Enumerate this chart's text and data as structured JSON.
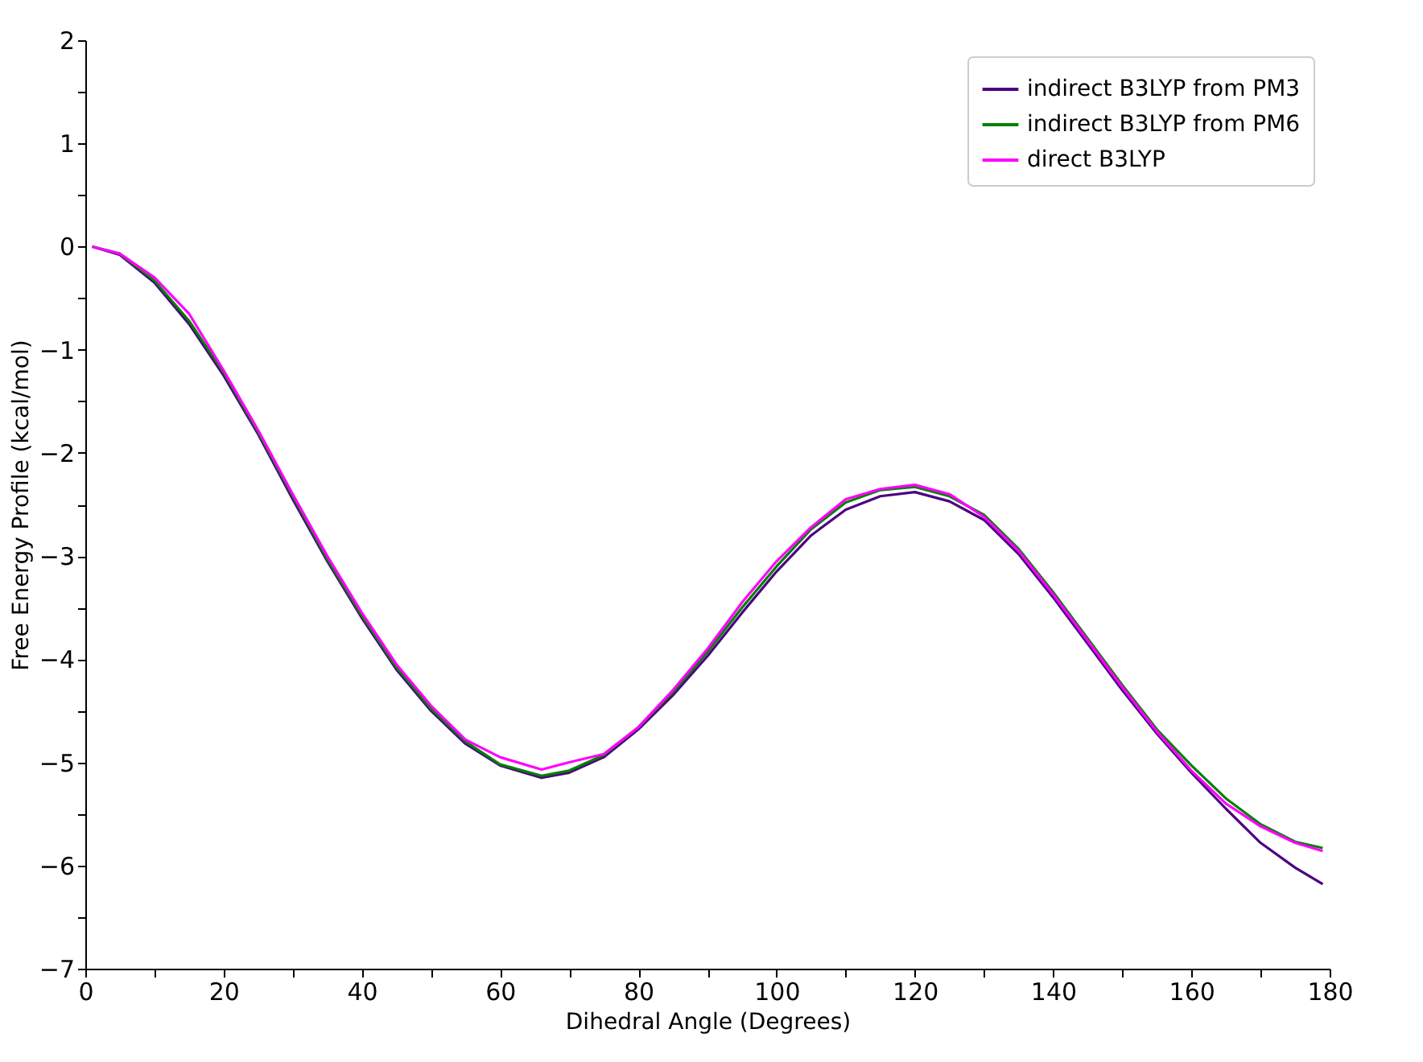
{
  "chart_data": {
    "type": "line",
    "xlabel": "Dihedral Angle (Degrees)",
    "ylabel": "Free Energy Profile (kcal/mol)",
    "xlim": [
      0,
      180
    ],
    "ylim": [
      -7,
      2
    ],
    "xticks": [
      0,
      {
        "value": 10,
        "label": null
      },
      20,
      {
        "value": 30,
        "label": null
      },
      40,
      {
        "value": 50,
        "label": null
      },
      60,
      {
        "value": 70,
        "label": null
      },
      80,
      {
        "value": 90,
        "label": null
      },
      100,
      {
        "value": 110,
        "label": null
      },
      120,
      {
        "value": 130,
        "label": null
      },
      140,
      {
        "value": 150,
        "label": null
      },
      160,
      {
        "value": 170,
        "label": null
      },
      180
    ],
    "yticks": [
      -7,
      {
        "value": -6.5,
        "label": null
      },
      -6,
      {
        "value": -5.5,
        "label": null
      },
      -5,
      {
        "value": -4.5,
        "label": null
      },
      -4,
      {
        "value": -3.5,
        "label": null
      },
      -3,
      {
        "value": -2.5,
        "label": null
      },
      -2,
      {
        "value": -1.5,
        "label": null
      },
      -1,
      {
        "value": -0.5,
        "label": null
      },
      0,
      {
        "value": 0.5,
        "label": null
      },
      1,
      {
        "value": 1.5,
        "label": null
      },
      2
    ],
    "x": [
      1,
      5,
      10,
      15,
      20,
      25,
      30,
      35,
      40,
      45,
      50,
      55,
      60,
      66,
      70,
      75,
      80,
      85,
      90,
      95,
      100,
      105,
      110,
      115,
      120,
      125,
      130,
      135,
      140,
      145,
      150,
      155,
      160,
      165,
      170,
      175,
      179
    ],
    "legend": "top right",
    "grid": false,
    "line_style": "solid",
    "marker": "none",
    "series": [
      {
        "name": "indirect B3LYP from PM3",
        "color": "#4b0082",
        "values": [
          0,
          -0.08,
          -0.35,
          -0.75,
          -1.25,
          -1.82,
          -2.45,
          -3.05,
          -3.6,
          -4.1,
          -4.5,
          -4.82,
          -5.03,
          -5.15,
          -5.1,
          -4.95,
          -4.68,
          -4.35,
          -3.97,
          -3.55,
          -3.15,
          -2.8,
          -2.55,
          -2.42,
          -2.38,
          -2.47,
          -2.65,
          -2.98,
          -3.4,
          -3.85,
          -4.3,
          -4.72,
          -5.1,
          -5.45,
          -5.78,
          -6.02,
          -6.18
        ]
      },
      {
        "name": "indirect B3LYP from PM6",
        "color": "#008000",
        "values": [
          0,
          -0.07,
          -0.33,
          -0.72,
          -1.22,
          -1.8,
          -2.42,
          -3.03,
          -3.58,
          -4.08,
          -4.48,
          -4.8,
          -5.02,
          -5.13,
          -5.08,
          -4.93,
          -4.66,
          -4.32,
          -3.93,
          -3.5,
          -3.1,
          -2.74,
          -2.48,
          -2.36,
          -2.33,
          -2.42,
          -2.6,
          -2.93,
          -3.35,
          -3.8,
          -4.25,
          -4.68,
          -5.03,
          -5.35,
          -5.6,
          -5.77,
          -5.83
        ]
      },
      {
        "name": "direct B3LYP",
        "color": "#ff00ff",
        "values": [
          0,
          -0.07,
          -0.3,
          -0.65,
          -1.2,
          -1.78,
          -2.4,
          -3.0,
          -3.55,
          -4.05,
          -4.45,
          -4.78,
          -4.95,
          -5.07,
          -5.0,
          -4.92,
          -4.66,
          -4.3,
          -3.9,
          -3.45,
          -3.05,
          -2.72,
          -2.45,
          -2.35,
          -2.31,
          -2.4,
          -2.62,
          -2.95,
          -3.37,
          -3.82,
          -4.27,
          -4.7,
          -5.08,
          -5.4,
          -5.62,
          -5.78,
          -5.86
        ]
      }
    ]
  }
}
